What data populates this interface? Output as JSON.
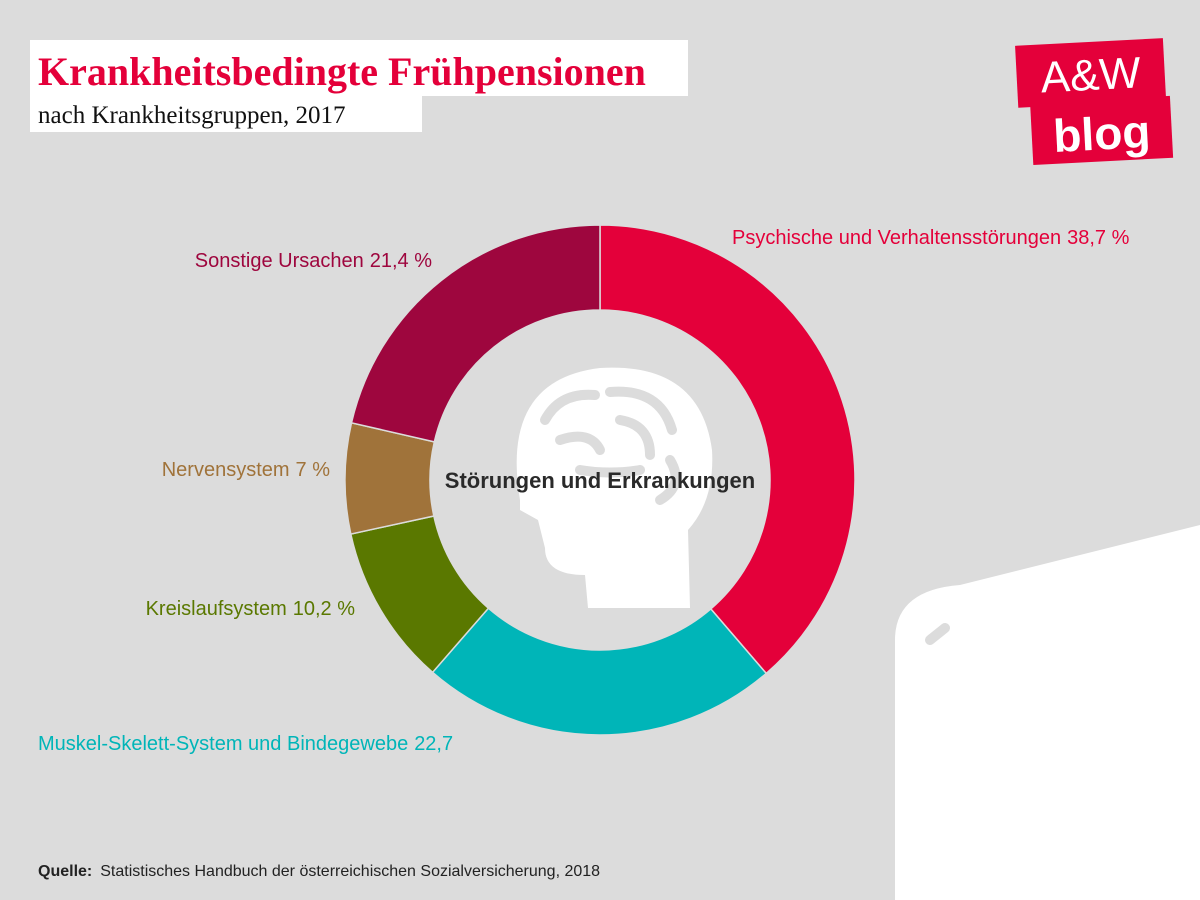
{
  "chart_data": {
    "type": "pie",
    "title": "Krankheitsbedingte Frühpensionen",
    "subtitle": "nach Krankheitsgruppen, 2017",
    "center_label": "Störungen und Erkrankungen",
    "categories": [
      "Psychische und Verhaltensstörungen",
      "Muskel-Skelett-System und Bindegewebe",
      "Kreislaufsystem",
      "Nervensystem",
      "Sonstige Ursachen"
    ],
    "values": [
      38.7,
      22.7,
      10.2,
      7,
      21.4
    ],
    "value_labels": [
      "38,7 %",
      "22,7",
      "10,2 %",
      "7 %",
      "21,4 %"
    ],
    "colors": [
      "#e4003a",
      "#00b5b8",
      "#5a7800",
      "#a0733a",
      "#9e063e"
    ],
    "source_label": "Quelle:",
    "source": "Statistisches Handbuch der österreichischen Sozialversicherung, 2018",
    "logo": [
      "A&W",
      "blog"
    ]
  }
}
